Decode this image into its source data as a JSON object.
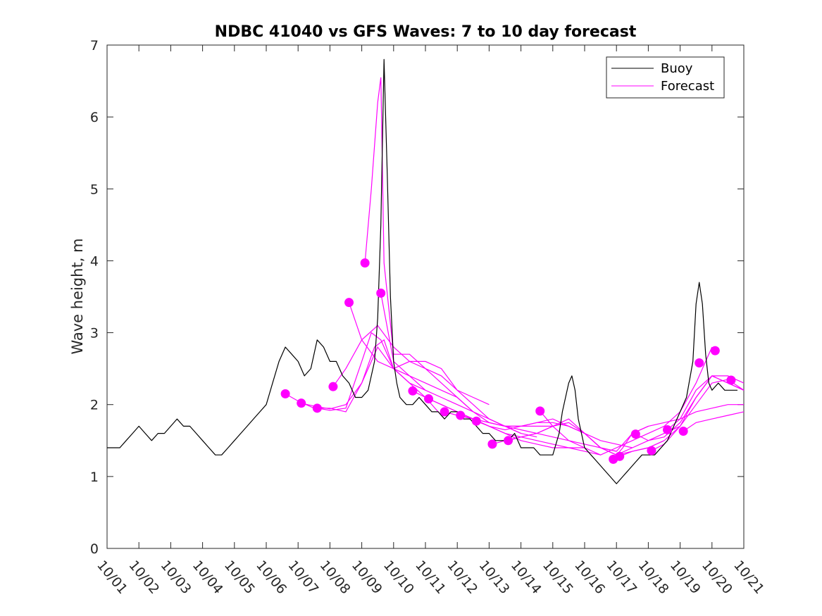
{
  "chart_data": {
    "type": "line",
    "title": "NDBC 41040 vs GFS Waves: 7 to 10 day forecast",
    "xlabel": "",
    "ylabel": "Wave height, m",
    "xlim": [
      0,
      20
    ],
    "ylim": [
      0,
      7
    ],
    "xticks": [
      0,
      1,
      2,
      3,
      4,
      5,
      6,
      7,
      8,
      9,
      10,
      11,
      12,
      13,
      14,
      15,
      16,
      17,
      18,
      19,
      20
    ],
    "xtick_labels": [
      "10/01",
      "10/02",
      "10/03",
      "10/04",
      "10/05",
      "10/06",
      "10/07",
      "10/08",
      "10/09",
      "10/10",
      "10/11",
      "10/12",
      "10/13",
      "10/14",
      "10/15",
      "10/16",
      "10/17",
      "10/18",
      "10/19",
      "10/20",
      "10/21"
    ],
    "yticks": [
      0,
      1,
      2,
      3,
      4,
      5,
      6,
      7
    ],
    "ytick_labels": [
      "0",
      "1",
      "2",
      "3",
      "4",
      "5",
      "6",
      "7"
    ],
    "legend": {
      "location": "top-right",
      "entries": [
        {
          "label": "Buoy",
          "color": "#000000"
        },
        {
          "label": "Forecast",
          "color": "#ff00ff"
        }
      ]
    },
    "series": [
      {
        "name": "Buoy",
        "color": "#000000",
        "x": [
          0,
          0.2,
          0.4,
          0.6,
          0.8,
          1.0,
          1.2,
          1.4,
          1.6,
          1.8,
          2.0,
          2.2,
          2.4,
          2.6,
          2.8,
          3.0,
          3.2,
          3.4,
          3.6,
          3.8,
          4.0,
          4.2,
          4.4,
          4.6,
          4.8,
          5.0,
          5.2,
          5.4,
          5.6,
          5.8,
          6.0,
          6.2,
          6.4,
          6.6,
          6.8,
          7.0,
          7.2,
          7.4,
          7.6,
          7.8,
          8.0,
          8.2,
          8.4,
          8.5,
          8.6,
          8.7,
          8.8,
          8.9,
          9.0,
          9.1,
          9.2,
          9.4,
          9.6,
          9.8,
          10.0,
          10.2,
          10.4,
          10.6,
          10.8,
          11.0,
          11.2,
          11.4,
          11.6,
          11.8,
          12.0,
          12.2,
          12.4,
          12.6,
          12.8,
          13.0,
          13.2,
          13.4,
          13.6,
          13.8,
          14.0,
          14.2,
          14.3,
          14.4,
          14.5,
          14.6,
          14.7,
          14.8,
          15.0,
          15.2,
          15.4,
          15.6,
          15.8,
          16.0,
          16.2,
          16.4,
          16.6,
          16.8,
          17.0,
          17.2,
          17.4,
          17.6,
          17.8,
          18.0,
          18.2,
          18.4,
          18.5,
          18.6,
          18.7,
          18.8,
          18.9,
          19.0,
          19.2,
          19.4,
          19.6,
          19.8
        ],
        "y": [
          1.4,
          1.4,
          1.4,
          1.5,
          1.6,
          1.7,
          1.6,
          1.5,
          1.6,
          1.6,
          1.7,
          1.8,
          1.7,
          1.7,
          1.6,
          1.5,
          1.4,
          1.3,
          1.3,
          1.4,
          1.5,
          1.6,
          1.7,
          1.8,
          1.9,
          2.0,
          2.3,
          2.6,
          2.8,
          2.7,
          2.6,
          2.4,
          2.5,
          2.9,
          2.8,
          2.6,
          2.6,
          2.4,
          2.3,
          2.1,
          2.1,
          2.2,
          2.6,
          3.2,
          4.5,
          6.8,
          5.2,
          3.5,
          2.6,
          2.3,
          2.1,
          2.0,
          2.0,
          2.1,
          2.0,
          1.9,
          1.9,
          1.8,
          1.9,
          1.9,
          1.8,
          1.8,
          1.7,
          1.6,
          1.6,
          1.5,
          1.5,
          1.5,
          1.6,
          1.4,
          1.4,
          1.4,
          1.3,
          1.3,
          1.3,
          1.6,
          1.9,
          2.1,
          2.3,
          2.4,
          2.2,
          1.8,
          1.4,
          1.3,
          1.2,
          1.1,
          1.0,
          0.9,
          1.0,
          1.1,
          1.2,
          1.3,
          1.3,
          1.3,
          1.4,
          1.5,
          1.7,
          1.9,
          2.1,
          2.6,
          3.4,
          3.7,
          3.4,
          2.7,
          2.3,
          2.2,
          2.3,
          2.2,
          2.2,
          2.2
        ]
      },
      {
        "name": "Forecast",
        "color": "#ff00ff",
        "traces": [
          {
            "x": [
              5.6,
              6.0,
              6.5,
              7.0,
              7.5,
              8.0,
              8.5,
              9.0,
              9.5,
              10.0
            ],
            "y": [
              2.15,
              2.05,
              1.95,
              1.95,
              1.9,
              2.3,
              2.8,
              2.5,
              2.4,
              2.2
            ]
          },
          {
            "x": [
              6.1,
              6.5,
              7.0,
              7.5,
              8.0,
              8.4,
              8.7,
              9.0,
              9.5,
              10.0,
              10.6
            ],
            "y": [
              2.02,
              1.98,
              1.94,
              2.0,
              2.3,
              2.8,
              2.9,
              2.5,
              2.3,
              2.1,
              1.8
            ]
          },
          {
            "x": [
              6.6,
              7.0,
              7.5,
              8.0,
              8.3,
              8.6,
              9.0,
              9.5,
              10.0,
              10.5,
              11.0,
              11.5
            ],
            "y": [
              1.95,
              1.92,
              1.95,
              2.6,
              3.0,
              2.9,
              2.5,
              2.3,
              2.2,
              2.1,
              2.0,
              1.9
            ]
          },
          {
            "x": [
              7.1,
              7.5,
              8.0,
              8.5,
              9.0,
              9.5,
              10.0,
              10.5,
              11.0,
              11.5,
              12.0
            ],
            "y": [
              2.25,
              2.5,
              2.9,
              3.1,
              2.8,
              2.6,
              2.5,
              2.4,
              2.2,
              2.1,
              2.0
            ]
          },
          {
            "x": [
              7.6,
              8.0,
              8.5,
              9.0,
              9.5,
              10.0,
              10.5,
              11.0,
              11.5,
              12.0,
              12.5,
              13.0
            ],
            "y": [
              3.42,
              2.9,
              2.6,
              2.5,
              2.6,
              2.6,
              2.5,
              2.2,
              2.0,
              1.8,
              1.7,
              1.6
            ]
          },
          {
            "x": [
              8.1,
              8.3,
              8.5,
              8.6,
              8.7,
              9.0,
              9.5,
              10.0,
              10.5,
              11.0,
              11.5,
              12.0,
              12.5,
              13.0,
              13.5
            ],
            "y": [
              3.97,
              5.0,
              6.2,
              6.55,
              3.97,
              2.7,
              2.7,
              2.5,
              2.3,
              2.1,
              1.9,
              1.8,
              1.7,
              1.6,
              1.55
            ]
          },
          {
            "x": [
              8.6,
              9.0,
              9.5,
              10.0,
              10.5,
              11.0,
              11.5,
              12.0,
              12.5,
              13.0,
              13.5,
              14.0
            ],
            "y": [
              3.55,
              2.6,
              2.4,
              2.3,
              2.2,
              2.1,
              1.9,
              1.75,
              1.7,
              1.7,
              1.7,
              1.7
            ]
          },
          {
            "x": [
              9.6,
              10.0,
              10.5,
              11.0,
              11.5,
              12.0,
              12.5,
              13.0,
              13.5,
              14.0,
              14.5,
              15.0
            ],
            "y": [
              2.19,
              2.1,
              2.0,
              1.9,
              1.8,
              1.7,
              1.6,
              1.5,
              1.45,
              1.4,
              1.4,
              1.4
            ]
          },
          {
            "x": [
              10.1,
              10.5,
              11.0,
              11.5,
              12.0,
              12.5,
              13.0,
              13.5,
              14.0,
              14.5,
              15.0,
              15.5
            ],
            "y": [
              2.08,
              2.0,
              1.9,
              1.8,
              1.7,
              1.6,
              1.55,
              1.5,
              1.45,
              1.4,
              1.35,
              1.3
            ]
          },
          {
            "x": [
              10.6,
              11.0,
              11.5,
              12.0,
              12.5,
              13.0,
              13.5,
              14.0,
              14.5,
              15.0,
              15.5,
              16.0
            ],
            "y": [
              1.9,
              1.85,
              1.8,
              1.75,
              1.7,
              1.65,
              1.6,
              1.55,
              1.5,
              1.45,
              1.4,
              1.35
            ]
          },
          {
            "x": [
              11.1,
              11.5,
              12.0,
              12.5,
              13.0,
              13.5,
              14.0,
              14.5,
              15.0,
              15.5,
              16.0,
              16.5
            ],
            "y": [
              1.85,
              1.8,
              1.75,
              1.7,
              1.7,
              1.75,
              1.8,
              1.7,
              1.6,
              1.5,
              1.45,
              1.4
            ]
          },
          {
            "x": [
              11.6,
              12.0,
              12.5,
              13.0,
              13.5,
              14.0,
              14.5,
              15.0,
              15.5,
              16.0,
              16.5,
              17.0
            ],
            "y": [
              1.77,
              1.7,
              1.65,
              1.7,
              1.75,
              1.75,
              1.7,
              1.6,
              1.4,
              1.35,
              1.6,
              1.7
            ]
          },
          {
            "x": [
              12.1,
              12.5,
              13.0,
              13.5,
              14.0,
              14.5,
              15.0,
              15.5,
              16.0,
              16.5,
              17.0,
              17.5
            ],
            "y": [
              1.45,
              1.5,
              1.55,
              1.6,
              1.7,
              1.75,
              1.6,
              1.4,
              1.3,
              1.35,
              1.4,
              1.5
            ]
          },
          {
            "x": [
              12.6,
              13.0,
              13.5,
              14.0,
              14.5,
              15.0,
              15.5,
              16.0,
              16.5,
              17.0,
              17.5,
              18.0
            ],
            "y": [
              1.5,
              1.55,
              1.6,
              1.7,
              1.8,
              1.6,
              1.4,
              1.3,
              1.4,
              1.5,
              1.6,
              1.7
            ]
          },
          {
            "x": [
              13.6,
              14.0,
              14.5,
              15.0,
              15.5,
              16.0,
              16.5,
              17.0,
              17.5,
              18.0,
              18.5,
              19.0
            ],
            "y": [
              1.91,
              1.7,
              1.5,
              1.4,
              1.3,
              1.4,
              1.5,
              1.6,
              1.7,
              1.9,
              2.3,
              2.8
            ]
          },
          {
            "x": [
              15.9,
              16.2,
              16.5,
              17.0,
              17.5,
              18.0,
              18.5,
              19.0,
              19.5,
              20.0
            ],
            "y": [
              1.24,
              1.4,
              1.6,
              1.7,
              1.75,
              1.8,
              2.2,
              2.4,
              2.3,
              2.2
            ]
          },
          {
            "x": [
              16.1,
              16.5,
              17.0,
              17.5,
              18.0,
              18.5,
              19.0,
              19.5,
              20.0
            ],
            "y": [
              1.28,
              1.35,
              1.4,
              1.5,
              1.7,
              2.0,
              2.3,
              2.35,
              2.2
            ]
          },
          {
            "x": [
              16.6,
              17.0,
              17.5,
              18.0,
              18.5,
              19.0,
              19.5,
              20.0
            ],
            "y": [
              1.59,
              1.5,
              1.55,
              1.75,
              2.1,
              2.4,
              2.3,
              2.2
            ]
          },
          {
            "x": [
              17.1,
              17.5,
              18.0,
              18.5,
              19.0,
              19.5,
              20.0
            ],
            "y": [
              1.36,
              1.45,
              1.7,
              2.1,
              2.4,
              2.4,
              2.3
            ]
          },
          {
            "x": [
              17.6,
              18.0,
              18.5,
              19.0,
              19.5,
              20.0
            ],
            "y": [
              1.65,
              1.8,
              1.9,
              1.95,
              2.0,
              2.0
            ]
          },
          {
            "x": [
              18.1,
              18.5,
              19.0,
              19.5,
              20.0
            ],
            "y": [
              1.63,
              1.75,
              1.8,
              1.85,
              1.9
            ]
          }
        ],
        "markers": {
          "x": [
            5.6,
            6.1,
            6.6,
            7.1,
            7.6,
            8.1,
            8.6,
            9.6,
            10.1,
            10.6,
            11.1,
            11.6,
            12.1,
            12.6,
            13.6,
            15.9,
            16.1,
            16.6,
            17.1,
            17.6,
            18.1,
            18.6,
            19.1,
            19.6
          ],
          "y": [
            2.15,
            2.02,
            1.95,
            2.25,
            3.42,
            3.97,
            3.55,
            2.19,
            2.08,
            1.9,
            1.85,
            1.77,
            1.45,
            1.5,
            1.91,
            1.24,
            1.28,
            1.59,
            1.36,
            1.65,
            1.63,
            2.58,
            2.75,
            2.34
          ]
        }
      }
    ]
  }
}
